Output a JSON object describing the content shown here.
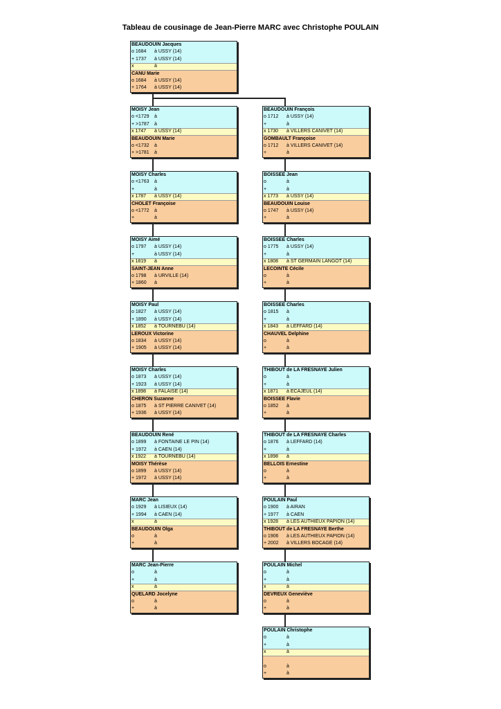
{
  "title": "Tableau de cousinage de Jean-Pierre MARC avec Christophe POULAIN",
  "left": [
    {
      "person": {
        "name": "BEAUDOUIN Jacques",
        "birth": [
          "o 1684",
          "à USSY (14)"
        ],
        "death": [
          "+ 1737",
          "à USSY (14)"
        ]
      },
      "marriage": [
        "x",
        "à"
      ],
      "spouse": {
        "name": "CANU Marie",
        "birth": [
          "o 1684",
          "à USSY (14)"
        ],
        "death": [
          "+ 1764",
          "à USSY (14)"
        ]
      }
    },
    {
      "person": {
        "name": "MOISY Jean",
        "birth": [
          "o <1729",
          "à"
        ],
        "death": [
          "+ >1787",
          "à"
        ]
      },
      "marriage": [
        "x 1747",
        "à USSY (14)"
      ],
      "spouse": {
        "name": "BEAUDOUIN Marie",
        "birth": [
          "o <1732",
          "à"
        ],
        "death": [
          "+ >1781",
          "à"
        ]
      }
    },
    {
      "person": {
        "name": "MOISY Charles",
        "birth": [
          "o <1763",
          "à"
        ],
        "death": [
          "+",
          "à"
        ]
      },
      "marriage": [
        "x 1787",
        "à USSY (14)"
      ],
      "spouse": {
        "name": "CHOLET Françoise",
        "birth": [
          "o <1772",
          "à"
        ],
        "death": [
          "+",
          "à"
        ]
      }
    },
    {
      "person": {
        "name": "MOISY Aimé",
        "birth": [
          "o 1797",
          "à USSY (14)"
        ],
        "death": [
          "+",
          "à USSY (14)"
        ]
      },
      "marriage": [
        "x 1819",
        "à"
      ],
      "spouse": {
        "name": "SAINT-JEAN Anne",
        "birth": [
          "o 1798",
          "à URVILLE (14)"
        ],
        "death": [
          "+ 1860",
          "à"
        ]
      }
    },
    {
      "person": {
        "name": "MOISY Paul",
        "birth": [
          "o 1827",
          "à USSY (14)"
        ],
        "death": [
          "+ 1890",
          "à USSY (14)"
        ]
      },
      "marriage": [
        "x 1852",
        "à TOURNEBU (14)"
      ],
      "spouse": {
        "name": "LEROUX Victorine",
        "birth": [
          "o 1834",
          "à USSY (14)"
        ],
        "death": [
          "+ 1905",
          "à USSY (14)"
        ]
      }
    },
    {
      "person": {
        "name": "MOISY Charles",
        "birth": [
          "o 1873",
          "à USSY (14)"
        ],
        "death": [
          "+ 1923",
          "à USSY (14)"
        ]
      },
      "marriage": [
        "x 1898",
        "à FALAISE (14)"
      ],
      "spouse": {
        "name": "CHERON Suzanne",
        "birth": [
          "o 1875",
          "à ST PIERRE CANIVET (14)"
        ],
        "death": [
          "+ 1936",
          "à USSY (14)"
        ]
      }
    },
    {
      "person": {
        "name": "BEAUDOUIN René",
        "birth": [
          "o 1899",
          "à FONTAINE LE PIN (14)"
        ],
        "death": [
          "+ 1972",
          "à CAEN (14)"
        ]
      },
      "marriage": [
        "x 1922",
        "à TOURNEBU (14)"
      ],
      "spouse": {
        "name": "MOISY Thérèse",
        "birth": [
          "o 1899",
          "à USSY (14)"
        ],
        "death": [
          "+ 1972",
          "à USSY (14)"
        ]
      }
    },
    {
      "person": {
        "name": "MARC Jean",
        "birth": [
          "o 1929",
          "à LISIEUX (14)"
        ],
        "death": [
          "+ 1994",
          "à CAEN (14)"
        ]
      },
      "marriage": [
        "x",
        "à"
      ],
      "spouse": {
        "name": "BEAUDOUIN Olga",
        "birth": [
          "o",
          "à"
        ],
        "death": [
          "+",
          "à"
        ]
      }
    },
    {
      "person": {
        "name": "MARC Jean-Pierre",
        "birth": [
          "o",
          "à"
        ],
        "death": [
          "+",
          "à"
        ]
      },
      "marriage": [
        "x",
        "à"
      ],
      "spouse": {
        "name": "QUELARD Jocelyne",
        "birth": [
          "o",
          "à"
        ],
        "death": [
          "+",
          "à"
        ]
      }
    }
  ],
  "right": [
    {
      "person": {
        "name": "BEAUDOUIN François",
        "birth": [
          "o 1712",
          "à USSY (14)"
        ],
        "death": [
          "+",
          "à"
        ]
      },
      "marriage": [
        "x 1730",
        "à VILLERS CANIVET (14)"
      ],
      "spouse": {
        "name": "GOMBAULT Françoise",
        "birth": [
          "o 1712",
          "à VILLERS CANIVET (14)"
        ],
        "death": [
          "+",
          "à"
        ]
      }
    },
    {
      "person": {
        "name": "BOISSEE Jean",
        "birth": [
          "o",
          "à"
        ],
        "death": [
          "+",
          "à"
        ]
      },
      "marriage": [
        "x 1773",
        "à USSY (14)"
      ],
      "spouse": {
        "name": "BEAUDOUIN Louise",
        "birth": [
          "o 1747",
          "à USSY (14)"
        ],
        "death": [
          "+",
          "à"
        ]
      }
    },
    {
      "person": {
        "name": "BOISSEE Charles",
        "birth": [
          "o 1775",
          "à USSY (14)"
        ],
        "death": [
          "+",
          "à"
        ]
      },
      "marriage": [
        "x 1808",
        "à ST GERMAIN LANGOT (14)"
      ],
      "spouse": {
        "name": "LECOINTE Cécile",
        "birth": [
          "o",
          "à"
        ],
        "death": [
          "+",
          "à"
        ]
      }
    },
    {
      "person": {
        "name": "BOISSEE Charles",
        "birth": [
          "o 1815",
          "à"
        ],
        "death": [
          "+",
          "à"
        ]
      },
      "marriage": [
        "x 1843",
        "à LEFFARD (14)"
      ],
      "spouse": {
        "name": "CHAUVEL Delphine",
        "birth": [
          "o",
          "à"
        ],
        "death": [
          "+",
          "à"
        ]
      }
    },
    {
      "person": {
        "name": "THIBOUT de LA FRESNAYE Julien",
        "birth": [
          "o",
          "à"
        ],
        "death": [
          "+",
          "à"
        ]
      },
      "marriage": [
        "x 1871",
        "à ECAJEUL (14)"
      ],
      "spouse": {
        "name": "BOISSEE Flavie",
        "birth": [
          "o 1852",
          "à"
        ],
        "death": [
          "+",
          "à"
        ]
      }
    },
    {
      "person": {
        "name": "THIBOUT de LA FRESNAYE Charles",
        "birth": [
          "o 1876",
          "à LEFFARD (14)"
        ],
        "death": [
          "+",
          "à"
        ]
      },
      "marriage": [
        "x 1898",
        "à"
      ],
      "spouse": {
        "name": "BELLOIS Ernestine",
        "birth": [
          "o",
          "à"
        ],
        "death": [
          "+",
          "à"
        ]
      }
    },
    {
      "person": {
        "name": "POULAIN Paul",
        "birth": [
          "o 1900",
          "à AIRAN"
        ],
        "death": [
          "+ 1977",
          "à CAEN"
        ]
      },
      "marriage": [
        "x 1928",
        "à LES AUTHIEUX PAPION (14)"
      ],
      "spouse": {
        "name": "THIBOUT de LA FRESNAYE Berthe",
        "birth": [
          "o 1906",
          "à LES AUTHIEUX PAPION (14)"
        ],
        "death": [
          "+ 2002",
          "à VILLERS BOCAGE (14)"
        ]
      }
    },
    {
      "person": {
        "name": "POULAIN Michel",
        "birth": [
          "o",
          "à"
        ],
        "death": [
          "+",
          "à"
        ]
      },
      "marriage": [
        "x",
        "à"
      ],
      "spouse": {
        "name": "DEVREUX Geneviève",
        "birth": [
          "o",
          "à"
        ],
        "death": [
          "+",
          "à"
        ]
      }
    },
    {
      "person": {
        "name": "POULAIN Christophe",
        "birth": [
          "o",
          "à"
        ],
        "death": [
          "+",
          "à"
        ]
      },
      "marriage": [
        "x",
        "à"
      ],
      "spouse": {
        "name": "",
        "birth": [
          "o",
          "à"
        ],
        "death": [
          "+",
          "à"
        ]
      }
    }
  ]
}
